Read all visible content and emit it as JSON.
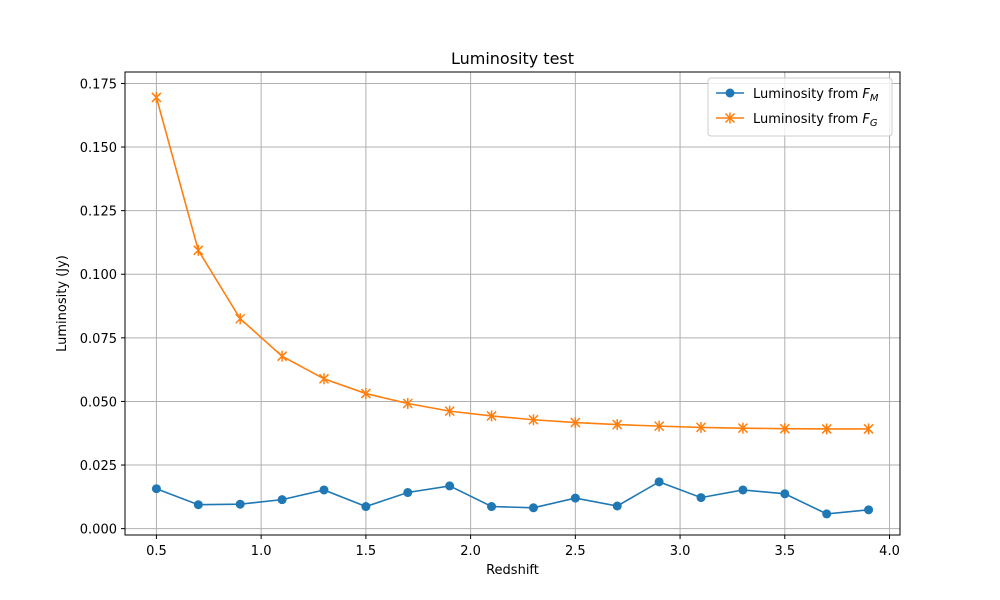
{
  "chart_data": {
    "type": "line",
    "title": "Luminosity test",
    "xlabel": "Redshift",
    "ylabel": "Luminosity (Jy)",
    "xlim": [
      0.35,
      4.05
    ],
    "ylim": [
      -0.0025,
      0.1795
    ],
    "xticks": [
      0.5,
      1.0,
      1.5,
      2.0,
      2.5,
      3.0,
      3.5,
      4.0
    ],
    "xtick_labels": [
      "0.5",
      "1.0",
      "1.5",
      "2.0",
      "2.5",
      "3.0",
      "3.5",
      "4.0"
    ],
    "yticks": [
      0.0,
      0.025,
      0.05,
      0.075,
      0.1,
      0.125,
      0.15,
      0.175
    ],
    "ytick_labels": [
      "0.000",
      "0.025",
      "0.050",
      "0.075",
      "0.100",
      "0.125",
      "0.150",
      "0.175"
    ],
    "grid": true,
    "legend_position": "top-right",
    "x": [
      0.5,
      0.7,
      0.9,
      1.1,
      1.3,
      1.5,
      1.7,
      1.9,
      2.1,
      2.3,
      2.5,
      2.7,
      2.9,
      3.1,
      3.3,
      3.5,
      3.7,
      3.9
    ],
    "series": [
      {
        "legend_prefix": "Luminosity from ",
        "legend_symbol": "F",
        "legend_subscript": "M",
        "color": "#1f77b4",
        "marker": "circle",
        "values": [
          0.0157,
          0.0094,
          0.0096,
          0.0114,
          0.0152,
          0.0087,
          0.0142,
          0.0168,
          0.0087,
          0.0082,
          0.012,
          0.0089,
          0.0184,
          0.0122,
          0.0152,
          0.0137,
          0.0058,
          0.0074
        ]
      },
      {
        "legend_prefix": "Luminosity from ",
        "legend_symbol": "F",
        "legend_subscript": "G",
        "color": "#ff7f0e",
        "marker": "x",
        "values": [
          0.1695,
          0.1094,
          0.0825,
          0.0678,
          0.0589,
          0.0531,
          0.0492,
          0.0462,
          0.0443,
          0.0428,
          0.0417,
          0.0409,
          0.0403,
          0.0398,
          0.0395,
          0.0393,
          0.0392,
          0.0392
        ]
      }
    ]
  }
}
